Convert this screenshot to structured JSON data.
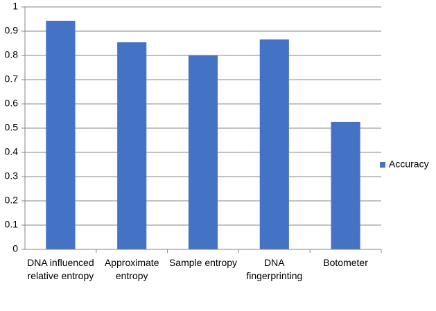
{
  "chart_data": {
    "type": "bar",
    "categories": [
      "DNA influenced relative entropy",
      "Approximate entropy",
      "Sample entropy",
      "DNA fingerprinting",
      "Botometer"
    ],
    "series": [
      {
        "name": "Accuracy",
        "color": "#4472c4",
        "values": [
          0.943,
          0.854,
          0.8,
          0.866,
          0.526
        ]
      }
    ],
    "ylim": [
      0,
      1
    ],
    "yticks": [
      0,
      0.1,
      0.2,
      0.3,
      0.4,
      0.5,
      0.6,
      0.7,
      0.8,
      0.9,
      1
    ],
    "grid": true,
    "legend": "right"
  }
}
